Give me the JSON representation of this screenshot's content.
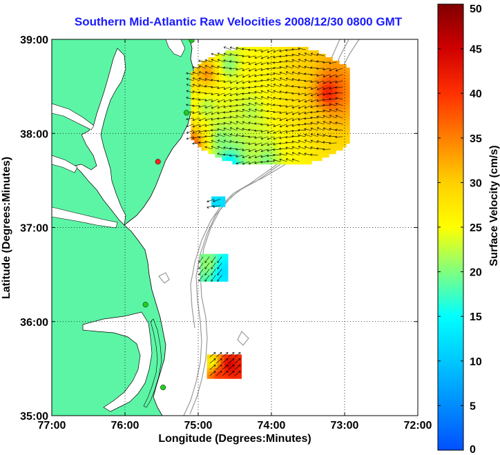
{
  "title": "Southern Mid-Atlantic Raw Velocities 2008/12/30 0800 GMT",
  "x_axis": {
    "label": "Longitude (Degrees:Minutes)",
    "ticks": [
      "77:00",
      "76:00",
      "75:00",
      "74:00",
      "73:00",
      "72:00"
    ]
  },
  "y_axis": {
    "label": "Latitude (Degrees:Minutes)",
    "ticks": [
      "39:00",
      "38:00",
      "37:00",
      "36:00",
      "35:00"
    ]
  },
  "colorbar": {
    "label": "Surface Velocity (cm/s)",
    "min": 0,
    "max": 50,
    "ticks": [
      "0",
      "5",
      "10",
      "15",
      "20",
      "25",
      "30",
      "35",
      "40",
      "45",
      "50"
    ]
  },
  "colors": {
    "land": "#5cf5a6",
    "water": "#ffffff",
    "title": "#1a1aff",
    "bathymetry": "#999999",
    "site_active": "#22cc22",
    "site_inactive": "#ff2222"
  },
  "map": {
    "lon_range": [
      -77,
      -72
    ],
    "lat_range": [
      35,
      39
    ],
    "grid": true,
    "grid_lons": [
      -76,
      -75,
      -74,
      -73
    ],
    "grid_lats": [
      36,
      37,
      38
    ],
    "radar_sites": [
      {
        "lon": -75.09,
        "lat": 38.99,
        "status": "active"
      },
      {
        "lon": -75.16,
        "lat": 38.22,
        "status": "active"
      },
      {
        "lon": -75.55,
        "lat": 37.7,
        "status": "inactive"
      },
      {
        "lon": -75.72,
        "lat": 36.18,
        "status": "active"
      },
      {
        "lon": -75.48,
        "lat": 35.3,
        "status": "active"
      }
    ],
    "velocity_regions": [
      {
        "name": "north-east-block",
        "lon0": -75.1,
        "lon1": -72.95,
        "lat0": 37.7,
        "lat1": 38.92,
        "cells": [
          {
            "lon": -74.9,
            "lat": 38.65,
            "speed": 34
          },
          {
            "lon": -74.6,
            "lat": 38.75,
            "speed": 20
          },
          {
            "lon": -74.3,
            "lat": 38.7,
            "speed": 26
          },
          {
            "lon": -73.6,
            "lat": 38.65,
            "speed": 30
          },
          {
            "lon": -73.25,
            "lat": 38.45,
            "speed": 42
          },
          {
            "lon": -74.9,
            "lat": 38.3,
            "speed": 22
          },
          {
            "lon": -74.3,
            "lat": 38.25,
            "speed": 22
          },
          {
            "lon": -73.8,
            "lat": 38.25,
            "speed": 28
          },
          {
            "lon": -73.45,
            "lat": 38.15,
            "speed": 30
          },
          {
            "lon": -75.1,
            "lat": 37.9,
            "speed": 38
          },
          {
            "lon": -74.7,
            "lat": 37.95,
            "speed": 20
          },
          {
            "lon": -74.2,
            "lat": 37.9,
            "speed": 23
          },
          {
            "lon": -73.7,
            "lat": 37.9,
            "speed": 26
          },
          {
            "lon": -74.6,
            "lat": 37.7,
            "speed": 13
          },
          {
            "lon": -74.1,
            "lat": 37.75,
            "speed": 20
          }
        ]
      },
      {
        "name": "small-patch",
        "lon0": -74.82,
        "lon1": -74.65,
        "lat0": 37.23,
        "lat1": 37.33,
        "cells": [
          {
            "lon": -74.74,
            "lat": 37.28,
            "speed": 12
          }
        ]
      },
      {
        "name": "middle-block",
        "lon0": -74.97,
        "lon1": -74.6,
        "lat0": 36.45,
        "lat1": 36.72,
        "cells": [
          {
            "lon": -74.88,
            "lat": 36.63,
            "speed": 21
          },
          {
            "lon": -74.68,
            "lat": 36.55,
            "speed": 12
          }
        ]
      },
      {
        "name": "south-block",
        "lon0": -74.88,
        "lon1": -74.42,
        "lat0": 35.42,
        "lat1": 35.65,
        "cells": [
          {
            "lon": -74.83,
            "lat": 35.58,
            "speed": 25
          },
          {
            "lon": -74.6,
            "lat": 35.55,
            "speed": 45
          },
          {
            "lon": -74.75,
            "lat": 35.46,
            "speed": 40
          }
        ]
      }
    ]
  }
}
